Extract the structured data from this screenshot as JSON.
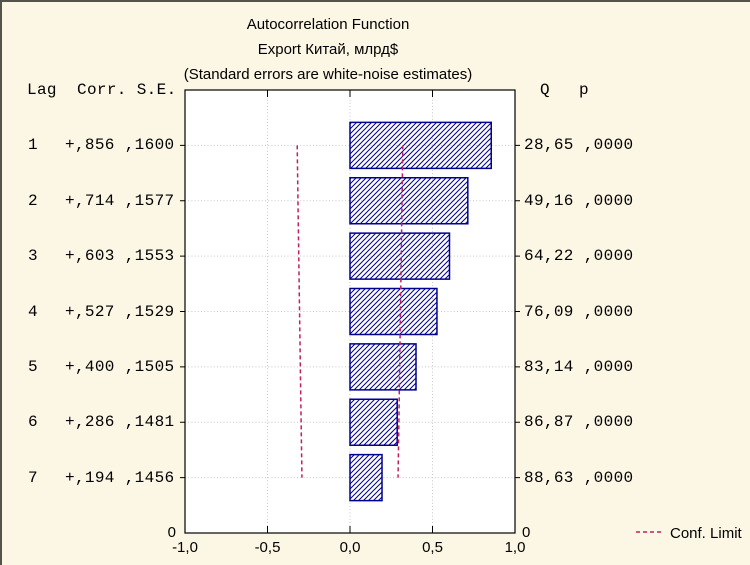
{
  "window": {
    "title_lines": [
      "Autocorrelation Function",
      "Export Китай, млрд$",
      "(Standard errors are white-noise estimates)"
    ]
  },
  "columns": {
    "lag": "Lag",
    "corr_se": "Corr. S.E.",
    "q": "Q",
    "p": "p"
  },
  "colors": {
    "background": "#FCF7E5",
    "plot_background": "#FFFFFF",
    "window_border": "#55544A",
    "axis": "#000000",
    "grid": "#C6C6C6",
    "bar_border": "#000090",
    "bar_hatch": "#000090",
    "conf_limit": "#C02060",
    "text": "#000000"
  },
  "chart_data": {
    "type": "bar",
    "orientation": "horizontal-bars",
    "title": "Autocorrelation Function",
    "subtitle": "Export Китай, млрд$",
    "note": "(Standard errors are white-noise estimates)",
    "grid": "dotted",
    "xlim": [
      -1.0,
      1.0
    ],
    "x_ticks": [
      {
        "value": -1.0,
        "label": "-1,0"
      },
      {
        "value": -0.5,
        "label": "-0,5"
      },
      {
        "value": 0.0,
        "label": "0,0"
      },
      {
        "value": 0.5,
        "label": "0,5"
      },
      {
        "value": 1.0,
        "label": "1,0"
      }
    ],
    "y_origin_label": "0",
    "conf_limit_multiplier": 2,
    "legend": [
      {
        "label": "Conf. Limit",
        "style": "dashed",
        "color": "#C02060"
      }
    ],
    "rows": [
      {
        "lag": "1",
        "corr": 0.856,
        "se": 0.16,
        "corr_label": "+,856",
        "se_label": ",1600",
        "q": 28.65,
        "q_label": "28,65",
        "p": 0.0,
        "p_label": ",0000"
      },
      {
        "lag": "2",
        "corr": 0.714,
        "se": 0.1577,
        "corr_label": "+,714",
        "se_label": ",1577",
        "q": 49.16,
        "q_label": "49,16",
        "p": 0.0,
        "p_label": ",0000"
      },
      {
        "lag": "3",
        "corr": 0.603,
        "se": 0.1553,
        "corr_label": "+,603",
        "se_label": ",1553",
        "q": 64.22,
        "q_label": "64,22",
        "p": 0.0,
        "p_label": ",0000"
      },
      {
        "lag": "4",
        "corr": 0.527,
        "se": 0.1529,
        "corr_label": "+,527",
        "se_label": ",1529",
        "q": 76.09,
        "q_label": "76,09",
        "p": 0.0,
        "p_label": ",0000"
      },
      {
        "lag": "5",
        "corr": 0.4,
        "se": 0.1505,
        "corr_label": "+,400",
        "se_label": ",1505",
        "q": 83.14,
        "q_label": "83,14",
        "p": 0.0,
        "p_label": ",0000"
      },
      {
        "lag": "6",
        "corr": 0.286,
        "se": 0.1481,
        "corr_label": "+,286",
        "se_label": ",1481",
        "q": 86.87,
        "q_label": "86,87",
        "p": 0.0,
        "p_label": ",0000"
      },
      {
        "lag": "7",
        "corr": 0.194,
        "se": 0.1456,
        "corr_label": "+,194",
        "se_label": ",1456",
        "q": 88.63,
        "q_label": "88,63",
        "p": 0.0,
        "p_label": ",0000"
      }
    ]
  }
}
